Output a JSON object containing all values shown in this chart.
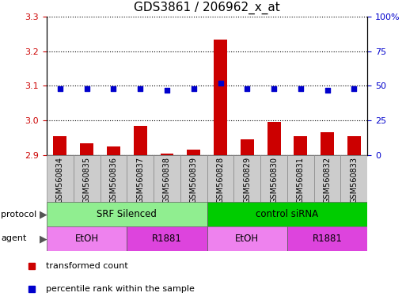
{
  "title": "GDS3861 / 206962_x_at",
  "samples": [
    "GSM560834",
    "GSM560835",
    "GSM560836",
    "GSM560837",
    "GSM560838",
    "GSM560839",
    "GSM560828",
    "GSM560829",
    "GSM560830",
    "GSM560831",
    "GSM560832",
    "GSM560833"
  ],
  "transformed_counts": [
    2.955,
    2.935,
    2.925,
    2.985,
    2.905,
    2.915,
    3.235,
    2.945,
    2.995,
    2.955,
    2.965,
    2.955
  ],
  "percentile_ranks": [
    48,
    48,
    48,
    48,
    47,
    48,
    52,
    48,
    48,
    48,
    47,
    48
  ],
  "ylim_left": [
    2.9,
    3.3
  ],
  "ylim_right": [
    0,
    100
  ],
  "yticks_left": [
    2.9,
    3.0,
    3.1,
    3.2,
    3.3
  ],
  "yticks_right": [
    0,
    25,
    50,
    75,
    100
  ],
  "ytick_labels_right": [
    "0",
    "25",
    "50",
    "75",
    "100%"
  ],
  "bar_color": "#cc0000",
  "dot_color": "#0000cc",
  "protocol_groups": [
    {
      "label": "SRF Silenced",
      "start": 0,
      "end": 6,
      "color": "#90ee90"
    },
    {
      "label": "control siRNA",
      "start": 6,
      "end": 12,
      "color": "#00cc00"
    }
  ],
  "agent_groups": [
    {
      "label": "EtOH",
      "start": 0,
      "end": 3,
      "color": "#ee82ee"
    },
    {
      "label": "R1881",
      "start": 3,
      "end": 6,
      "color": "#dd44dd"
    },
    {
      "label": "EtOH",
      "start": 6,
      "end": 9,
      "color": "#ee82ee"
    },
    {
      "label": "R1881",
      "start": 9,
      "end": 12,
      "color": "#dd44dd"
    }
  ],
  "legend_items": [
    {
      "label": "transformed count",
      "color": "#cc0000"
    },
    {
      "label": "percentile rank within the sample",
      "color": "#0000cc"
    }
  ],
  "xtick_bg": "#cccccc",
  "xtick_edge": "#888888",
  "axis_color_left": "#cc0000",
  "axis_color_right": "#0000cc"
}
